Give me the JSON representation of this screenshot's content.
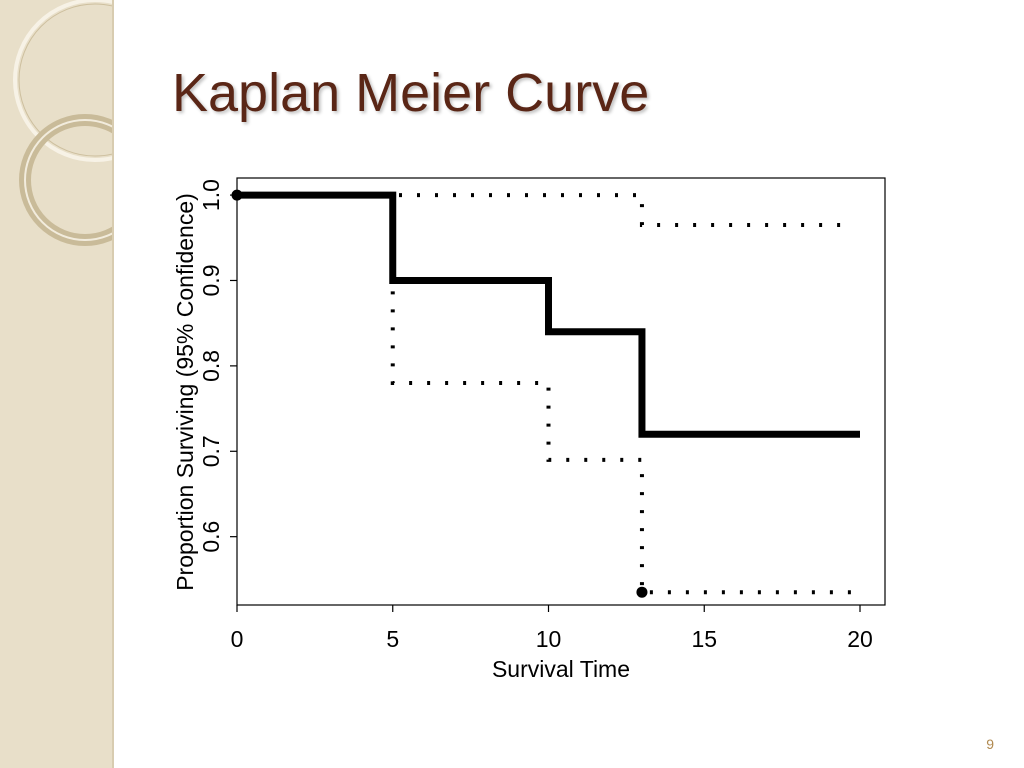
{
  "slide": {
    "title": "Kaplan Meier Curve",
    "page_number": "9"
  },
  "colors": {
    "title": "#5a2616",
    "sidebar": "#e8dfc9",
    "curve": "#000000",
    "page_number": "#b0894f"
  },
  "chart_data": {
    "type": "line",
    "xlabel": "Survival Time",
    "ylabel": "Proportion Surviving (95% Confidence)",
    "xlim": [
      0,
      20
    ],
    "ylim": [
      0.52,
      1.02
    ],
    "x_ticks": [
      0,
      5,
      10,
      15,
      20
    ],
    "y_ticks": [
      0.6,
      0.7,
      0.8,
      0.9,
      1.0
    ],
    "x_tick_labels": [
      "0",
      "5",
      "10",
      "15",
      "20"
    ],
    "y_tick_labels": [
      "0.6",
      "0.7",
      "0.8",
      "0.9",
      "1.0"
    ],
    "grid": false,
    "series": [
      {
        "style": "solid",
        "steps": [
          [
            0,
            1.0
          ],
          [
            5,
            0.9
          ],
          [
            10,
            0.84
          ],
          [
            13,
            0.72
          ]
        ],
        "x_end": 20,
        "markers": [
          [
            0,
            1.0
          ]
        ]
      },
      {
        "style": "dotted",
        "steps": [
          [
            0,
            1.0
          ],
          [
            13,
            0.965
          ]
        ],
        "x_end": 19.6,
        "markers": []
      },
      {
        "style": "dotted",
        "steps": [
          [
            0,
            1.0
          ],
          [
            5,
            0.78
          ],
          [
            10,
            0.69
          ],
          [
            13,
            0.535
          ]
        ],
        "x_end": 19.8,
        "markers": [
          [
            13,
            0.535
          ]
        ]
      }
    ]
  }
}
